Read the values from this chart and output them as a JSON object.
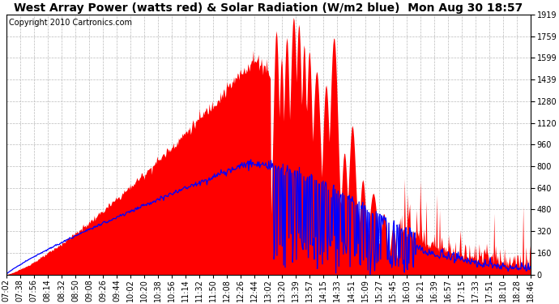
{
  "title": "West Array Power (watts red) & Solar Radiation (W/m2 blue)  Mon Aug 30 18:57",
  "copyright": "Copyright 2010 Cartronics.com",
  "background_color": "#ffffff",
  "plot_bg_color": "#ffffff",
  "grid_color": "#bbbbbb",
  "y_max": 1919.2,
  "y_min": 0.0,
  "y_ticks": [
    0.0,
    159.9,
    319.9,
    479.8,
    639.7,
    799.7,
    959.6,
    1119.5,
    1279.5,
    1439.4,
    1599.3,
    1759.2,
    1919.2
  ],
  "x_labels": [
    "07:02",
    "07:38",
    "07:56",
    "08:14",
    "08:32",
    "08:50",
    "09:08",
    "09:26",
    "09:44",
    "10:02",
    "10:20",
    "10:38",
    "10:56",
    "11:14",
    "11:32",
    "11:50",
    "12:08",
    "12:26",
    "12:44",
    "13:02",
    "13:20",
    "13:39",
    "13:57",
    "14:15",
    "14:33",
    "14:51",
    "15:09",
    "15:27",
    "15:45",
    "16:03",
    "16:21",
    "16:39",
    "16:57",
    "17:15",
    "17:33",
    "17:51",
    "18:10",
    "18:28",
    "18:46"
  ],
  "red_color": "#ff0000",
  "blue_color": "#0000ff",
  "title_fontsize": 10,
  "tick_fontsize": 7,
  "copyright_fontsize": 7
}
